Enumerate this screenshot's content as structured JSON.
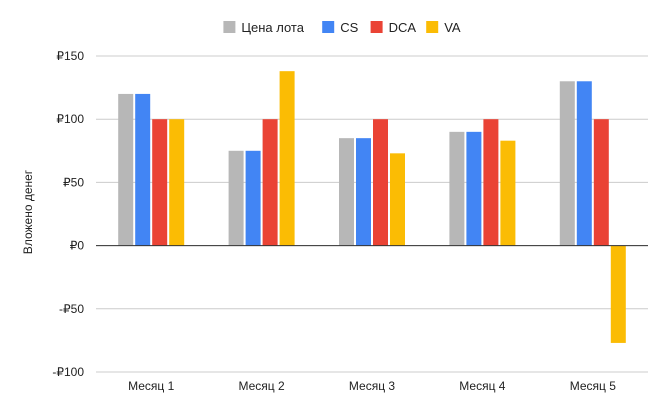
{
  "chart_data": {
    "type": "bar",
    "categories": [
      "Месяц 1",
      "Месяц 2",
      "Месяц 3",
      "Месяц 4",
      "Месяц 5"
    ],
    "series": [
      {
        "name": "Цена лота",
        "color": "#b7b7b7",
        "values": [
          120,
          75,
          85,
          90,
          130
        ]
      },
      {
        "name": "CS",
        "color": "#4285f4",
        "values": [
          120,
          75,
          85,
          90,
          130
        ]
      },
      {
        "name": "DCA",
        "color": "#ea4335",
        "values": [
          100,
          100,
          100,
          100,
          100
        ]
      },
      {
        "name": "VA",
        "color": "#fbbc04",
        "values": [
          100,
          138,
          73,
          83,
          -77
        ]
      }
    ],
    "ylabel": "Вложено денег",
    "ylim": [
      -100,
      150
    ],
    "yticks": [
      -100,
      -50,
      0,
      50,
      100,
      150
    ],
    "ytick_labels": [
      "-₽100",
      "-₽50",
      "₽0",
      "₽50",
      "₽100",
      "₽150"
    ],
    "grid": true,
    "legend_position": "top-center"
  }
}
